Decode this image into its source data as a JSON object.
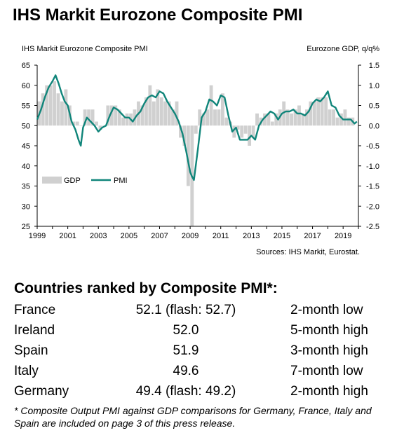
{
  "title": "IHS Markit Eurozone Composite PMI",
  "chart_data": {
    "type": "line",
    "title": "",
    "left_axis_label": "IHS Markit Eurozone Composite PMI",
    "right_axis_label": "Eurozone GDP, q/q%",
    "source": "Sources: IHS Markit, Eurostat.",
    "x_range": [
      1999,
      2020
    ],
    "x_ticks": [
      "1999",
      "2001",
      "2003",
      "2005",
      "2007",
      "2009",
      "2011",
      "2013",
      "2015",
      "2017",
      "2019"
    ],
    "left_ylim": [
      25,
      65
    ],
    "left_ticks": [
      "65",
      "60",
      "55",
      "50",
      "45",
      "40",
      "35",
      "30",
      "25"
    ],
    "right_ylim": [
      -2.5,
      1.5
    ],
    "right_ticks": [
      "1.5",
      "1.0",
      "0.5",
      "0.0",
      "-0.5",
      "-1.0",
      "-1.5",
      "-2.0",
      "-2.5"
    ],
    "legend": [
      "GDP",
      "PMI"
    ],
    "legend_position": "lower-left",
    "grid": false,
    "colors": {
      "gdp": "#d0d0d0",
      "pmi": "#10857a"
    },
    "series": [
      {
        "name": "GDP",
        "kind": "bar",
        "x": [
          1999.0,
          1999.25,
          1999.5,
          1999.75,
          2000.0,
          2000.25,
          2000.5,
          2000.75,
          2001.0,
          2001.25,
          2001.5,
          2001.75,
          2002.0,
          2002.25,
          2002.5,
          2002.75,
          2003.0,
          2003.25,
          2003.5,
          2003.75,
          2004.0,
          2004.25,
          2004.5,
          2004.75,
          2005.0,
          2005.25,
          2005.5,
          2005.75,
          2006.0,
          2006.25,
          2006.5,
          2006.75,
          2007.0,
          2007.25,
          2007.5,
          2007.75,
          2008.0,
          2008.25,
          2008.5,
          2008.75,
          2009.0,
          2009.25,
          2009.5,
          2009.75,
          2010.0,
          2010.25,
          2010.5,
          2010.75,
          2011.0,
          2011.25,
          2011.5,
          2011.75,
          2012.0,
          2012.25,
          2012.5,
          2012.75,
          2013.0,
          2013.25,
          2013.5,
          2013.75,
          2014.0,
          2014.25,
          2014.5,
          2014.75,
          2015.0,
          2015.25,
          2015.5,
          2015.75,
          2016.0,
          2016.25,
          2016.5,
          2016.75,
          2017.0,
          2017.25,
          2017.5,
          2017.75,
          2018.0,
          2018.25,
          2018.5,
          2018.75,
          2019.0,
          2019.25,
          2019.5
        ],
        "values": [
          0.6,
          0.8,
          1.0,
          1.0,
          1.1,
          0.8,
          0.6,
          0.9,
          0.5,
          0.1,
          0.1,
          0.0,
          0.4,
          0.4,
          0.4,
          0.1,
          -0.1,
          0.0,
          0.5,
          0.5,
          0.5,
          0.4,
          0.2,
          0.3,
          0.3,
          0.4,
          0.6,
          0.5,
          0.7,
          1.0,
          0.6,
          0.9,
          0.7,
          0.6,
          0.6,
          0.4,
          0.6,
          -0.3,
          -0.5,
          -1.5,
          -2.5,
          -0.2,
          0.4,
          0.3,
          0.4,
          1.0,
          0.4,
          0.4,
          0.8,
          0.2,
          0.1,
          -0.3,
          -0.1,
          -0.3,
          -0.2,
          -0.5,
          -0.3,
          0.3,
          0.2,
          0.3,
          0.3,
          0.1,
          0.3,
          0.4,
          0.6,
          0.4,
          0.3,
          0.4,
          0.5,
          0.3,
          0.4,
          0.6,
          0.6,
          0.7,
          0.7,
          0.7,
          0.4,
          0.4,
          0.2,
          0.3,
          0.4,
          0.2,
          0.2
        ]
      },
      {
        "name": "PMI",
        "kind": "line",
        "x": [
          1999.0,
          1999.25,
          1999.5,
          1999.75,
          2000.0,
          2000.2,
          2000.4,
          2000.6,
          2000.8,
          2001.0,
          2001.25,
          2001.5,
          2001.7,
          2001.85,
          2002.0,
          2002.25,
          2002.5,
          2002.75,
          2003.0,
          2003.25,
          2003.5,
          2003.75,
          2004.0,
          2004.25,
          2004.5,
          2004.75,
          2005.0,
          2005.25,
          2005.5,
          2005.75,
          2006.0,
          2006.25,
          2006.5,
          2006.75,
          2007.0,
          2007.25,
          2007.5,
          2007.75,
          2008.0,
          2008.25,
          2008.5,
          2008.75,
          2009.0,
          2009.1,
          2009.25,
          2009.5,
          2009.75,
          2010.0,
          2010.25,
          2010.5,
          2010.75,
          2011.0,
          2011.25,
          2011.5,
          2011.75,
          2012.0,
          2012.25,
          2012.5,
          2012.75,
          2013.0,
          2013.25,
          2013.5,
          2013.75,
          2014.0,
          2014.25,
          2014.5,
          2014.75,
          2015.0,
          2015.25,
          2015.5,
          2015.75,
          2016.0,
          2016.25,
          2016.5,
          2016.75,
          2017.0,
          2017.25,
          2017.5,
          2017.75,
          2018.0,
          2018.25,
          2018.5,
          2018.75,
          2019.0,
          2019.25,
          2019.5,
          2019.75,
          2019.9
        ],
        "values": [
          51.5,
          54.0,
          57.0,
          59.5,
          61.0,
          62.5,
          60.5,
          58.0,
          56.0,
          55.0,
          51.0,
          49.0,
          46.5,
          45.0,
          49.5,
          52.0,
          51.0,
          50.0,
          48.5,
          49.5,
          50.0,
          52.5,
          54.5,
          54.0,
          53.0,
          52.0,
          52.0,
          51.0,
          52.5,
          53.5,
          55.5,
          57.0,
          57.5,
          57.0,
          58.5,
          58.0,
          56.0,
          54.5,
          53.0,
          51.0,
          48.0,
          43.5,
          38.5,
          37.5,
          36.5,
          44.0,
          52.0,
          53.5,
          56.5,
          56.0,
          55.0,
          57.5,
          57.0,
          52.5,
          48.5,
          49.5,
          46.5,
          46.5,
          46.5,
          47.5,
          46.5,
          50.0,
          51.5,
          52.5,
          53.5,
          53.0,
          51.5,
          53.0,
          53.5,
          53.5,
          54.0,
          53.0,
          53.0,
          52.5,
          53.5,
          55.5,
          56.5,
          56.0,
          57.0,
          58.5,
          55.0,
          54.5,
          52.5,
          51.5,
          51.5,
          51.5,
          50.5,
          51.0
        ]
      }
    ]
  },
  "ranking": {
    "title": "Countries ranked by Composite PMI*:",
    "rows": [
      {
        "country": "France",
        "value": "52.1 (flash: 52.7)",
        "note": "2-month low"
      },
      {
        "country": "Ireland",
        "value": "52.0",
        "note": "5-month high"
      },
      {
        "country": "Spain",
        "value": "51.9",
        "note": "3-month high"
      },
      {
        "country": "Italy",
        "value": "49.6",
        "note": "7-month low"
      },
      {
        "country": "Germany",
        "value": "49.4  (flash: 49.2)",
        "note": "2-month high"
      }
    ]
  },
  "footnote": "* Composite Output PMI against GDP comparisons for Germany, France, Italy and Spain are included on page 3 of this press release."
}
